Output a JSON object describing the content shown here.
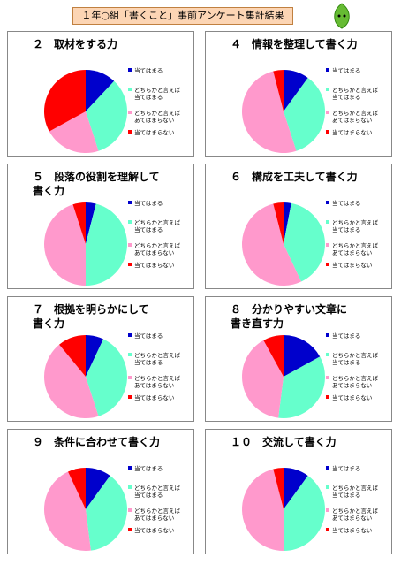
{
  "header": {
    "title": "１年○組「書くこと」事前アンケート集計結果"
  },
  "chart_data": [
    {
      "type": "pie",
      "title": "２　取材をする力",
      "categories": [
        "当てはまる",
        "どちらかと言えば\n当てはまる",
        "どちらかと言えば\nあてはまらない",
        "当てはまらない"
      ],
      "values": [
        12,
        33,
        22,
        33
      ],
      "colors": [
        "#0000cc",
        "#66ffcc",
        "#ff99cc",
        "#ff0000"
      ]
    },
    {
      "type": "pie",
      "title": "４　情報を整理して書く力",
      "categories": [
        "当てはまる",
        "どちらかと言えば\n当てはまる",
        "どちらかと言えば\nあてはまらない",
        "当てはまらない"
      ],
      "values": [
        10,
        35,
        51,
        4
      ],
      "colors": [
        "#0000cc",
        "#66ffcc",
        "#ff99cc",
        "#ff0000"
      ]
    },
    {
      "type": "pie",
      "title": "５　段落の役割を理解して\n書く力",
      "categories": [
        "当てはまる",
        "どちらかと言えば\n当てはまる",
        "どちらかと言えば\nあてはまらない",
        "当てはまらない"
      ],
      "values": [
        4,
        46,
        45,
        5
      ],
      "colors": [
        "#0000cc",
        "#66ffcc",
        "#ff99cc",
        "#ff0000"
      ]
    },
    {
      "type": "pie",
      "title": "６　構成を工夫して書く力",
      "categories": [
        "当てはまる",
        "どちらかと言えば\n当てはまる",
        "どちらかと言えば\nあてはまらない",
        "当てはまらない"
      ],
      "values": [
        3,
        40,
        53,
        4
      ],
      "colors": [
        "#0000cc",
        "#66ffcc",
        "#ff99cc",
        "#ff0000"
      ]
    },
    {
      "type": "pie",
      "title": "７　根拠を明らかにして\n書く力",
      "categories": [
        "当てはまる",
        "どちらかと言えば\n当てはまる",
        "どちらかと言えば\nあてはまらない",
        "当てはまらない"
      ],
      "values": [
        7,
        38,
        44,
        11
      ],
      "colors": [
        "#0000cc",
        "#66ffcc",
        "#ff99cc",
        "#ff0000"
      ]
    },
    {
      "type": "pie",
      "title": "８　分かりやすい文章に\n書き直す力",
      "categories": [
        "当てはまる",
        "どちらかと言えば\n当てはまる",
        "どちらかと言えば\nあてはまらない",
        "当てはまらない"
      ],
      "values": [
        17,
        35,
        40,
        8
      ],
      "colors": [
        "#0000cc",
        "#66ffcc",
        "#ff99cc",
        "#ff0000"
      ]
    },
    {
      "type": "pie",
      "title": "９　条件に合わせて書く力",
      "categories": [
        "当てはまる",
        "どちらかと言えば\n当てはまる",
        "どちらかと言えば\nあてはまらない",
        "当てはまらない"
      ],
      "values": [
        10,
        38,
        45,
        7
      ],
      "colors": [
        "#0000cc",
        "#66ffcc",
        "#ff99cc",
        "#ff0000"
      ]
    },
    {
      "type": "pie",
      "title": "１０　交流して書く力",
      "categories": [
        "当てはまる",
        "どちらかと言えば\n当てはまる",
        "どちらかと言えば\nあてはまらない",
        "当てはまらない"
      ],
      "values": [
        10,
        40,
        46,
        4
      ],
      "colors": [
        "#0000cc",
        "#66ffcc",
        "#ff99cc",
        "#ff0000"
      ]
    }
  ]
}
